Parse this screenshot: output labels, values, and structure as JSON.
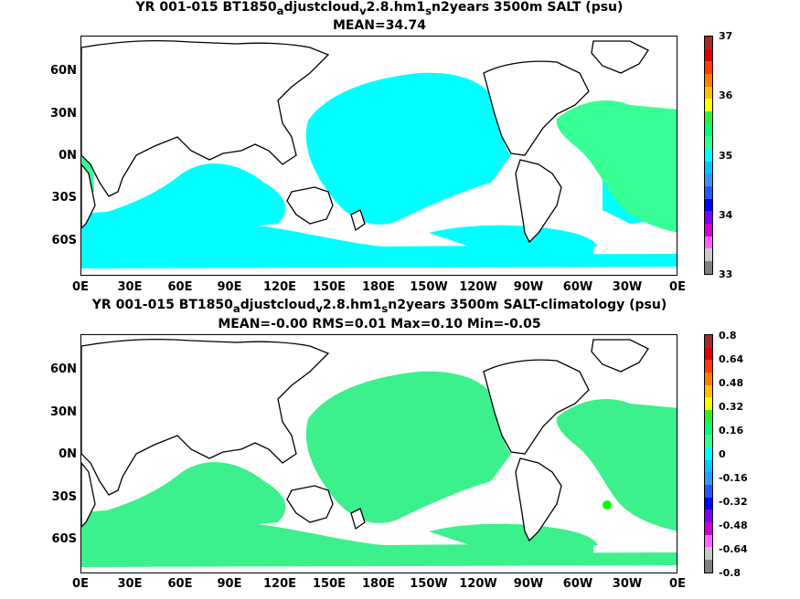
{
  "top": {
    "title_parts": [
      "YR 001-015 BT1850",
      "a",
      "djustcloud",
      "v",
      "2.8.hm1",
      "s",
      "n2years 3500m SALT (psu)"
    ],
    "subtitle": "MEAN=34.74",
    "fill_color": "#00ffff",
    "accent_color": "#37ff96",
    "colorbar_labels": [
      "37",
      "36",
      "35",
      "34",
      "33"
    ],
    "colorbar_colors": [
      "#a52a2a",
      "#e00000",
      "#ff3c00",
      "#ff7f00",
      "#ffc000",
      "#ffff00",
      "#2df02d",
      "#00ff80",
      "#37ff96",
      "#00ffff",
      "#00c8ff",
      "#3296ff",
      "#1e5aff",
      "#0000ff",
      "#7f00ff",
      "#d200d2",
      "#ff64ff",
      "#c8c8c8",
      "#7f7f7f"
    ]
  },
  "bottom": {
    "title_parts": [
      "YR 001-015 BT1850",
      "a",
      "djustcloud",
      "v",
      "2.8.hm1",
      "s",
      "n2years 3500m SALT-climatology (psu)"
    ],
    "subtitle": "MEAN=-0.00   RMS=0.01   Max=0.10   Min=-0.05",
    "fill_color": "#3cf08c",
    "accent_color": "#00ff00",
    "colorbar_labels": [
      "0.8",
      "0.64",
      "0.48",
      "0.32",
      "0.16",
      "0",
      "-0.16",
      "-0.32",
      "-0.48",
      "-0.64",
      "-0.8"
    ],
    "colorbar_colors": [
      "#a52a2a",
      "#e00000",
      "#ff3c00",
      "#ff7f00",
      "#ffc000",
      "#ffff00",
      "#2df02d",
      "#00ff80",
      "#37ff96",
      "#00ffff",
      "#00c8ff",
      "#3296ff",
      "#1e5aff",
      "#0000ff",
      "#7f00ff",
      "#d200d2",
      "#ff64ff",
      "#c8c8c8",
      "#7f7f7f"
    ]
  },
  "axes": {
    "lat_labels": [
      "60N",
      "30N",
      "0N",
      "30S",
      "60S"
    ],
    "lon_labels": [
      "0E",
      "30E",
      "60E",
      "90E",
      "120E",
      "150E",
      "180E",
      "150W",
      "120W",
      "90W",
      "60W",
      "30W",
      "0E"
    ]
  }
}
